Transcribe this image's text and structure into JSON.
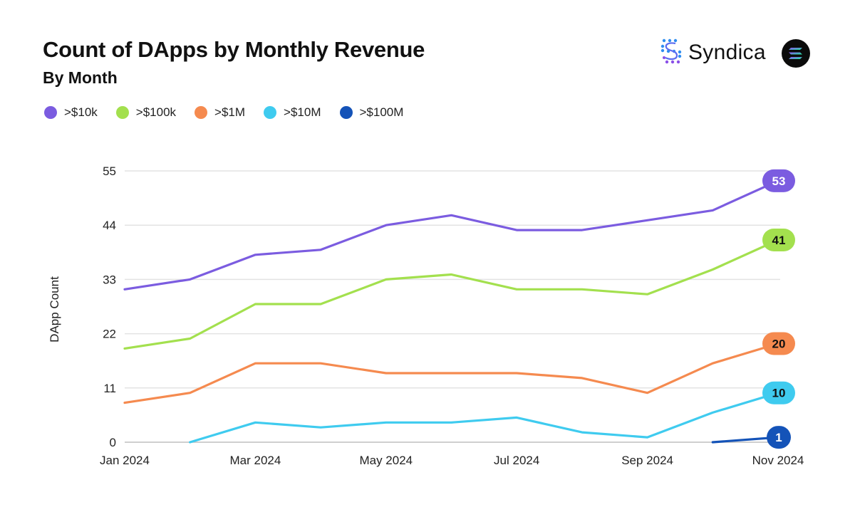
{
  "header": {
    "title": "Count of DApps by Monthly Revenue",
    "subtitle": "By Month",
    "brand": "Syndica",
    "brand_icon": "syndica-logo-icon",
    "partner_icon": "solana-logo-icon"
  },
  "chart_data": {
    "type": "line",
    "title": "Count of DApps by Monthly Revenue",
    "subtitle": "By Month",
    "xlabel": "",
    "ylabel": "DApp Count",
    "ylim": [
      0,
      55
    ],
    "yticks": [
      0,
      11,
      22,
      33,
      44,
      55
    ],
    "grid": true,
    "legend_position": "top-left",
    "x": [
      "Jan 2024",
      "Feb 2024",
      "Mar 2024",
      "Apr 2024",
      "May 2024",
      "Jun 2024",
      "Jul 2024",
      "Aug 2024",
      "Sep 2024",
      "Oct 2024",
      "Nov 2024"
    ],
    "xtick_labels": [
      "Jan 2024",
      "",
      "Mar 2024",
      "",
      "May 2024",
      "",
      "Jul 2024",
      "",
      "Sep 2024",
      "",
      "Nov 2024"
    ],
    "series": [
      {
        "name": ">$10k",
        "color": "#7B5CE0",
        "label_text": "#ffffff",
        "end_label": "53",
        "values": [
          31,
          33,
          38,
          39,
          44,
          46,
          43,
          43,
          45,
          47,
          53
        ]
      },
      {
        "name": ">$100k",
        "color": "#A3E04E",
        "label_text": "#111111",
        "end_label": "41",
        "values": [
          19,
          21,
          28,
          28,
          33,
          34,
          31,
          31,
          30,
          35,
          41
        ]
      },
      {
        "name": ">$1M",
        "color": "#F58A4F",
        "label_text": "#111111",
        "end_label": "20",
        "values": [
          8,
          10,
          16,
          16,
          14,
          14,
          14,
          13,
          10,
          16,
          20
        ]
      },
      {
        "name": ">$10M",
        "color": "#3FCBEF",
        "label_text": "#111111",
        "end_label": "10",
        "values": [
          null,
          0,
          4,
          3,
          4,
          4,
          5,
          2,
          1,
          6,
          10
        ]
      },
      {
        "name": ">$100M",
        "color": "#1453B8",
        "label_text": "#ffffff",
        "end_label": "1",
        "values": [
          null,
          null,
          null,
          null,
          null,
          null,
          null,
          null,
          null,
          0,
          1
        ]
      }
    ]
  }
}
